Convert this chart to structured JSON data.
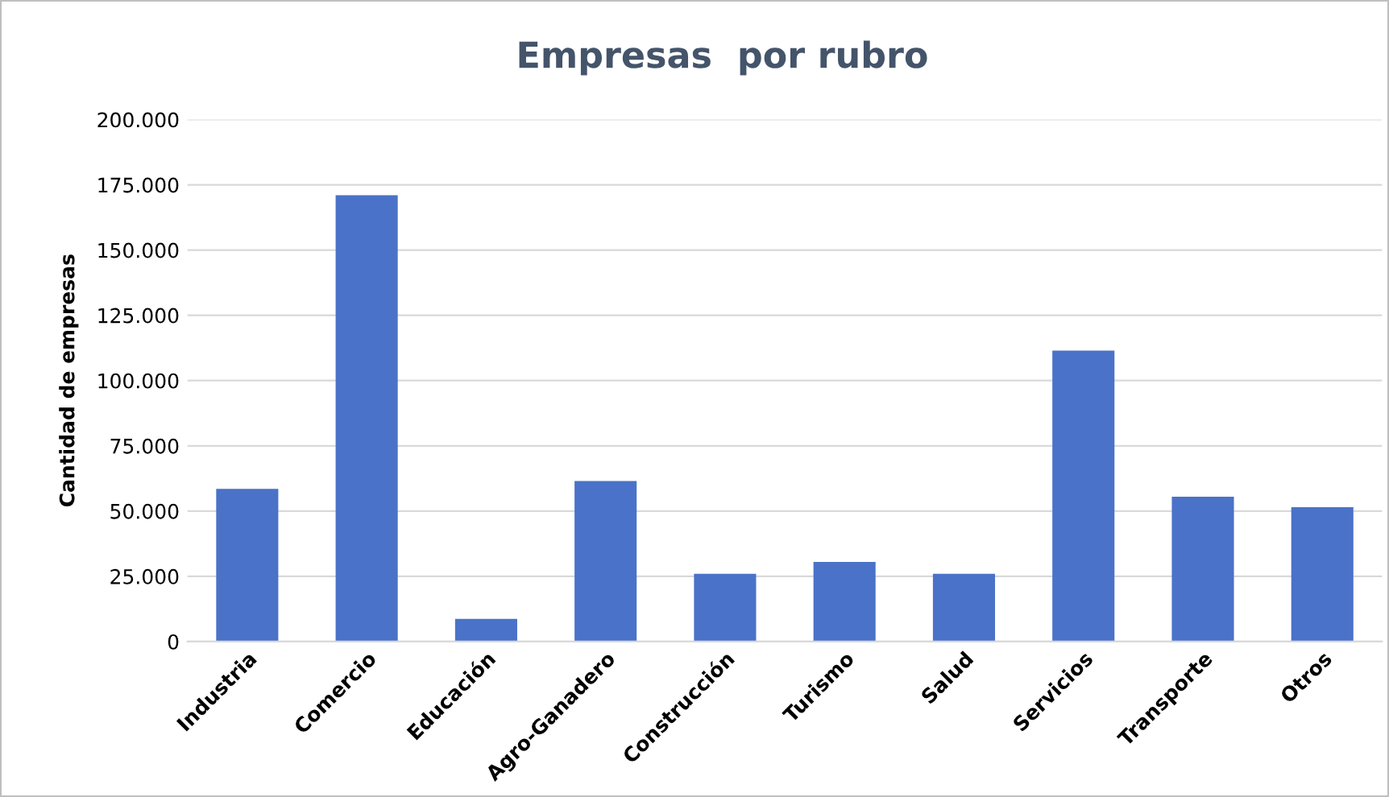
{
  "chart_data": {
    "type": "bar",
    "title": "Empresas  por rubro",
    "ylabel": "Cantidad de empresas",
    "categories": [
      "Industria",
      "Comercio",
      "Educación",
      "Agro-Ganadero",
      "Construcción",
      "Turismo",
      "Salud",
      "Servicios",
      "Transporte",
      "Otros"
    ],
    "values": [
      58500,
      171000,
      8700,
      61500,
      26000,
      30500,
      26000,
      111500,
      55500,
      51500
    ],
    "color": "#4a72c8",
    "ylim": [
      0,
      200000
    ],
    "yticks": [
      {
        "value": 0,
        "label": "0"
      },
      {
        "value": 25000,
        "label": "25.000"
      },
      {
        "value": 50000,
        "label": "50.000"
      },
      {
        "value": 75000,
        "label": "75.000"
      },
      {
        "value": 100000,
        "label": "100.000"
      },
      {
        "value": 125000,
        "label": "125.000"
      },
      {
        "value": 150000,
        "label": "150.000"
      },
      {
        "value": 175000,
        "label": "175.000"
      },
      {
        "value": 200000,
        "label": "200.000"
      }
    ],
    "grid": "y"
  }
}
